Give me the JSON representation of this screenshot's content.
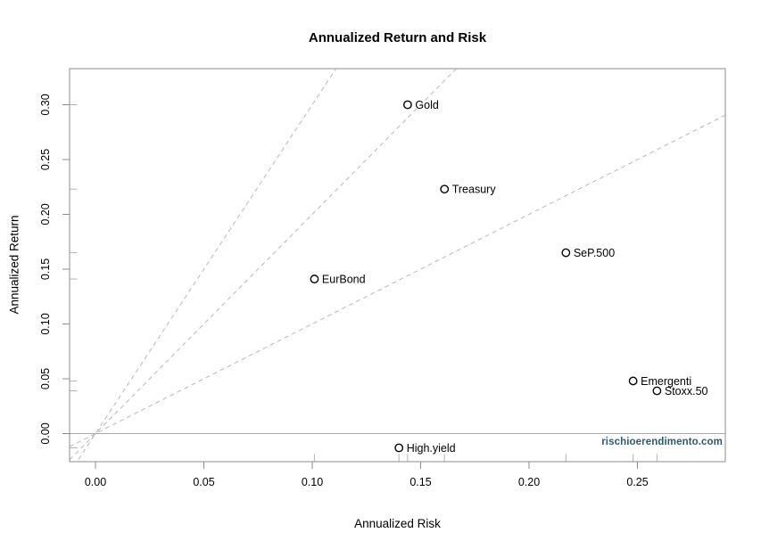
{
  "chart_data": {
    "type": "scatter",
    "title": "Annualized Return and Risk",
    "xlabel": "Annualized Risk",
    "ylabel": "Annualized Return",
    "watermark": "rischioerendimento.com",
    "points": [
      {
        "name": "Gold",
        "risk": 0.144,
        "return": 0.3
      },
      {
        "name": "Treasury",
        "risk": 0.161,
        "return": 0.223
      },
      {
        "name": "SeP.500",
        "risk": 0.217,
        "return": 0.165
      },
      {
        "name": "EurBond",
        "risk": 0.101,
        "return": 0.141
      },
      {
        "name": "Emergenti",
        "risk": 0.248,
        "return": 0.048
      },
      {
        "name": "Stoxx.50",
        "risk": 0.259,
        "return": 0.039
      },
      {
        "name": "High.yield",
        "risk": 0.14,
        "return": -0.013
      }
    ],
    "x_ticks": [
      0,
      0.05,
      0.1,
      0.15,
      0.2,
      0.25
    ],
    "x_tick_labels": [
      "0.00",
      "0.05",
      "0.10",
      "0.15",
      "0.20",
      "0.25"
    ],
    "y_ticks": [
      0,
      0.05,
      0.1,
      0.15,
      0.2,
      0.25,
      0.3
    ],
    "y_tick_labels": [
      "0.00",
      "0.05",
      "0.10",
      "0.15",
      "0.20",
      "0.25",
      "0.30"
    ],
    "xlim": [
      -0.01193,
      0.29053
    ],
    "ylim": [
      -0.02561,
      0.33293
    ],
    "reference_lines": {
      "slopes_through_origin": [
        1,
        2,
        3
      ],
      "line_style": "dashed",
      "horizontal_zero_line": true
    },
    "rug_marks": {
      "bottom_axis": true,
      "left_axis": true
    },
    "grid": false,
    "legend": "none",
    "colors": {
      "point_stroke": "#000000",
      "dashed_line": "#b8b8b8",
      "zero_line": "#ababab",
      "axis_box": "#8c8c8c",
      "tick": "#8c8c8c",
      "rug": "#b3b3b3",
      "text": "#000000",
      "watermark": "#2e5c6d",
      "background": "#ffffff"
    }
  }
}
